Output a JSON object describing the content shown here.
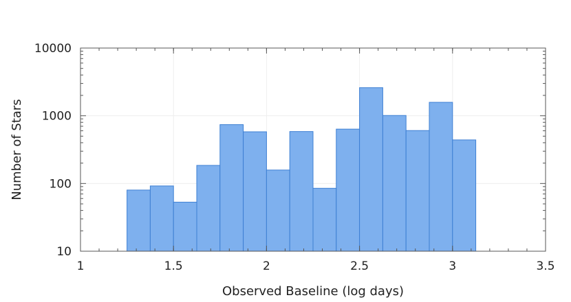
{
  "chart_data": {
    "type": "bar",
    "title": "",
    "xlabel": "Observed Baseline (log days)",
    "ylabel": "Number of Stars",
    "xlim": [
      1,
      3.5
    ],
    "ylim": [
      10,
      10000
    ],
    "yscale": "log",
    "xticks": [
      {
        "value": 1,
        "label": "1"
      },
      {
        "value": 1.5,
        "label": "1.5"
      },
      {
        "value": 2,
        "label": "2"
      },
      {
        "value": 2.5,
        "label": "2.5"
      },
      {
        "value": 3,
        "label": "3"
      },
      {
        "value": 3.5,
        "label": "3.5"
      }
    ],
    "yticks": [
      {
        "value": 10,
        "label": "10"
      },
      {
        "value": 100,
        "label": "100"
      },
      {
        "value": 1000,
        "label": "1000"
      },
      {
        "value": 10000,
        "label": "10000"
      }
    ],
    "bin_edges": [
      1.25,
      1.375,
      1.5,
      1.625,
      1.75,
      1.875,
      2.0,
      2.125,
      2.25,
      2.375,
      2.5,
      2.625,
      2.75,
      2.875,
      3.0,
      3.125
    ],
    "values": [
      80,
      92,
      53,
      185,
      740,
      580,
      158,
      585,
      85,
      635,
      2600,
      1010,
      605,
      1580,
      440
    ],
    "grid": true,
    "legend": "none",
    "colors": {
      "bar_fill": "#7eb0ee",
      "bar_edge": "#3d7fd3",
      "axis": "#555555",
      "grid": "#eeeeee"
    }
  }
}
